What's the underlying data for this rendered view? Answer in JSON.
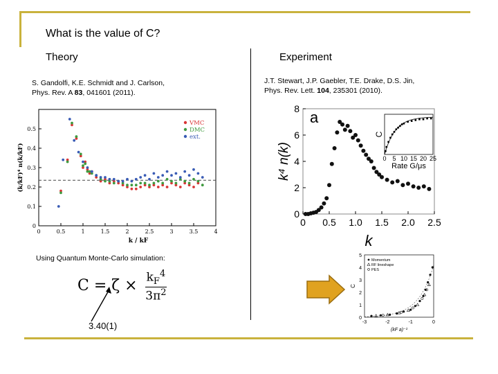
{
  "slide": {
    "title": "What is the value of C?",
    "theory_header": "Theory",
    "experiment_header": "Experiment"
  },
  "theory": {
    "reference_line1": "S. Gandolfi, K.E. Schmidt and J. Carlson,",
    "reference_line2_prefix": "Phys. Rev. A ",
    "reference_volume": "83",
    "reference_line2_suffix": ", 041601 (2011).",
    "simulation_caption": "Using Quantum Monte-Carlo simulation:",
    "formula_lhs": "C = ζ ×",
    "formula_numerator": "k",
    "formula_numerator_sub": "F",
    "formula_numerator_sup": "4",
    "formula_denominator": "3π",
    "formula_denominator_sup": "2",
    "zeta_value": "3.40(1)"
  },
  "experiment": {
    "reference_line1": "J.T. Stewart, J.P. Gaebler, T.E. Drake, D.S. Jin,",
    "reference_line2_prefix": "Phys. Rev. Lett. ",
    "reference_volume": "104",
    "reference_line2_suffix": ", 235301 (2010)."
  },
  "chart_data": [
    {
      "type": "scatter",
      "xlabel": "k / kF",
      "ylabel": "(k/kF)⁴ n(k/kF)",
      "xlim": [
        0,
        4
      ],
      "ylim": [
        0,
        0.6
      ],
      "xticks": [
        "0",
        "0.5",
        "1",
        "1.5",
        "2",
        "2.5",
        "3",
        "3.5",
        "4"
      ],
      "yticks": [
        "0",
        "0.1",
        "0.2",
        "0.3",
        "0.4",
        "0.5"
      ],
      "reference_line_y": 0.235,
      "legend_position": "top-right",
      "series": [
        {
          "name": "VMC",
          "color": "#d93636",
          "x": [
            0.5,
            0.65,
            0.75,
            0.85,
            0.95,
            1.0,
            1.05,
            1.1,
            1.15,
            1.2,
            1.3,
            1.4,
            1.5,
            1.6,
            1.7,
            1.8,
            1.9,
            2.0,
            2.1,
            2.2,
            2.3,
            2.4,
            2.5,
            2.6,
            2.7,
            2.8,
            2.9,
            3.0,
            3.1,
            3.2,
            3.3,
            3.4,
            3.5,
            3.6
          ],
          "y": [
            0.18,
            0.34,
            0.52,
            0.45,
            0.36,
            0.3,
            0.33,
            0.29,
            0.27,
            0.28,
            0.25,
            0.23,
            0.24,
            0.22,
            0.23,
            0.22,
            0.21,
            0.2,
            0.19,
            0.19,
            0.2,
            0.21,
            0.2,
            0.21,
            0.2,
            0.21,
            0.2,
            0.22,
            0.21,
            0.2,
            0.22,
            0.21,
            0.2,
            0.22
          ]
        },
        {
          "name": "DMC",
          "color": "#3f9a3f",
          "x": [
            0.5,
            0.65,
            0.75,
            0.85,
            0.95,
            1.0,
            1.05,
            1.1,
            1.15,
            1.2,
            1.3,
            1.4,
            1.5,
            1.6,
            1.7,
            1.8,
            1.9,
            2.0,
            2.1,
            2.2,
            2.3,
            2.4,
            2.5,
            2.6,
            2.7,
            2.8,
            2.9,
            3.0,
            3.1,
            3.2,
            3.3,
            3.4,
            3.5,
            3.6,
            3.7
          ],
          "y": [
            0.17,
            0.33,
            0.53,
            0.46,
            0.37,
            0.31,
            0.32,
            0.28,
            0.28,
            0.27,
            0.26,
            0.24,
            0.23,
            0.23,
            0.22,
            0.23,
            0.22,
            0.21,
            0.21,
            0.21,
            0.22,
            0.22,
            0.21,
            0.22,
            0.23,
            0.22,
            0.24,
            0.23,
            0.22,
            0.24,
            0.23,
            0.22,
            0.24,
            0.23,
            0.21
          ]
        },
        {
          "name": "ext.",
          "color": "#3a5cb5",
          "x": [
            0.45,
            0.55,
            0.7,
            0.8,
            0.9,
            1.0,
            1.1,
            1.2,
            1.3,
            1.4,
            1.5,
            1.6,
            1.7,
            1.8,
            1.9,
            2.0,
            2.1,
            2.2,
            2.3,
            2.4,
            2.5,
            2.6,
            2.7,
            2.8,
            2.9,
            3.0,
            3.1,
            3.2,
            3.3,
            3.4,
            3.5,
            3.6,
            3.7
          ],
          "y": [
            0.1,
            0.34,
            0.55,
            0.44,
            0.38,
            0.33,
            0.3,
            0.28,
            0.26,
            0.25,
            0.25,
            0.24,
            0.24,
            0.23,
            0.23,
            0.24,
            0.23,
            0.24,
            0.25,
            0.26,
            0.24,
            0.27,
            0.25,
            0.26,
            0.28,
            0.26,
            0.27,
            0.25,
            0.28,
            0.26,
            0.29,
            0.27,
            0.25
          ]
        }
      ]
    },
    {
      "type": "scatter",
      "panel_label": "a",
      "xlabel": "k",
      "ylabel": "k⁴ n(k)",
      "xlim": [
        0,
        2.5
      ],
      "ylim": [
        0,
        8
      ],
      "xticks": [
        "0",
        "0.5",
        "1.0",
        "1.5",
        "2.0",
        "2.5"
      ],
      "yticks": [
        "0",
        "2",
        "4",
        "6",
        "8"
      ],
      "x": [
        0.05,
        0.1,
        0.15,
        0.2,
        0.25,
        0.3,
        0.35,
        0.4,
        0.45,
        0.5,
        0.55,
        0.6,
        0.65,
        0.7,
        0.75,
        0.8,
        0.85,
        0.9,
        0.95,
        1.0,
        1.05,
        1.1,
        1.15,
        1.2,
        1.25,
        1.3,
        1.35,
        1.4,
        1.45,
        1.5,
        1.6,
        1.7,
        1.8,
        1.9,
        2.0,
        2.1,
        2.2,
        2.3,
        2.4
      ],
      "y": [
        0.0,
        0.0,
        0.05,
        0.1,
        0.15,
        0.3,
        0.5,
        0.8,
        1.2,
        2.2,
        3.8,
        5.0,
        6.2,
        7.0,
        6.8,
        6.4,
        6.7,
        6.3,
        5.8,
        6.0,
        5.6,
        5.2,
        4.8,
        4.5,
        4.2,
        4.0,
        3.5,
        3.2,
        3.0,
        2.8,
        2.6,
        2.4,
        2.5,
        2.2,
        2.3,
        2.1,
        2.0,
        2.1,
        1.9
      ],
      "inset": {
        "xlabel": "Rate G/μs",
        "ylabel": "C",
        "xticks": [
          "0",
          "5",
          "10",
          "15",
          "20",
          "25"
        ],
        "x": [
          0.5,
          1,
          2,
          3,
          4,
          5,
          6,
          7,
          8,
          9,
          10,
          12,
          14,
          16,
          18,
          20,
          22,
          24
        ],
        "y": [
          0.2,
          0.45,
          0.75,
          1.0,
          1.2,
          1.35,
          1.5,
          1.6,
          1.7,
          1.8,
          1.85,
          1.95,
          2.0,
          2.05,
          2.1,
          2.1,
          2.15,
          2.15
        ]
      }
    },
    {
      "type": "scatter",
      "xlabel": "(kF a)⁻¹",
      "ylabel": "C",
      "xlim": [
        -3,
        0
      ],
      "ylim": [
        0,
        5
      ],
      "xticks": [
        "-3",
        "-2",
        "-1",
        "0"
      ],
      "yticks": [
        "0",
        "1",
        "2",
        "3",
        "4",
        "5"
      ],
      "legend_position": "top-left",
      "series": [
        {
          "name": "Momentum",
          "marker": "filled",
          "x": [
            -2.7,
            -2.3,
            -1.9,
            -1.6,
            -1.3,
            -1.0,
            -0.8,
            -0.6,
            -0.45,
            -0.35,
            -0.25,
            -0.15,
            -0.05
          ],
          "y": [
            0.1,
            0.15,
            0.2,
            0.3,
            0.45,
            0.6,
            0.9,
            1.3,
            1.7,
            2.2,
            2.8,
            3.4,
            4.0
          ]
        },
        {
          "name": "RF lineshape",
          "marker": "open-triangle",
          "x": [
            -2.5,
            -2.0,
            -1.5,
            -1.1,
            -0.7,
            -0.4,
            -0.2
          ],
          "y": [
            0.12,
            0.2,
            0.35,
            0.55,
            1.0,
            1.8,
            2.6
          ]
        },
        {
          "name": "PES",
          "marker": "open-circle",
          "x": [
            -2.2,
            -1.4,
            -0.9,
            -0.5,
            -0.3
          ],
          "y": [
            0.15,
            0.4,
            0.75,
            1.5,
            2.2
          ]
        }
      ]
    }
  ],
  "colors": {
    "accent_rule": "#c9b23c",
    "arrow_fill": "#e0a220",
    "arrow_stroke": "#9a6d10"
  },
  "icons": {
    "arrow": "right-arrow-icon"
  }
}
